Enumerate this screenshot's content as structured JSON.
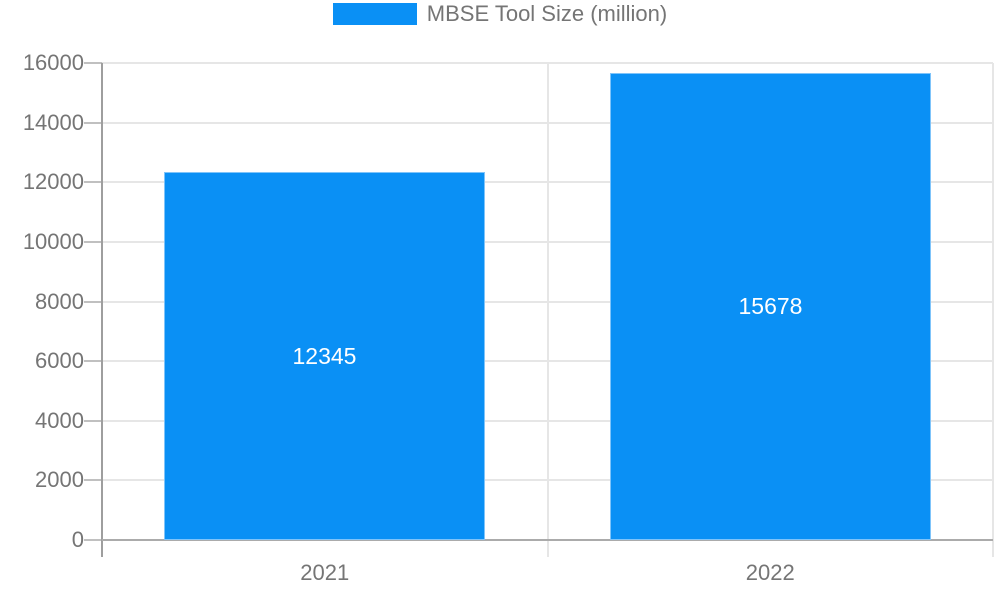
{
  "chart_data": {
    "type": "bar",
    "title": "MBSE Tool Size (million)",
    "legend_label": "MBSE Tool Size (million)",
    "legend_position": "top",
    "categories": [
      "2021",
      "2022"
    ],
    "values": [
      12345,
      15678
    ],
    "bar_value_labels": [
      "12345",
      "15678"
    ],
    "xlabel": "",
    "ylabel": "",
    "ylim": [
      0,
      16000
    ],
    "yticks": [
      0,
      2000,
      4000,
      6000,
      8000,
      10000,
      12000,
      14000,
      16000
    ],
    "grid": true,
    "colors": {
      "bar": "#0a90f5",
      "bar_edge": "#7fc4fa",
      "bar_value_text": "#ffffff",
      "axis_text": "#757575",
      "gridline": "#e6e6e6",
      "axis_line": "#9e9e9e",
      "zero_line": "#ababab",
      "tick": "#c0c0c0",
      "background": "#ffffff"
    }
  }
}
